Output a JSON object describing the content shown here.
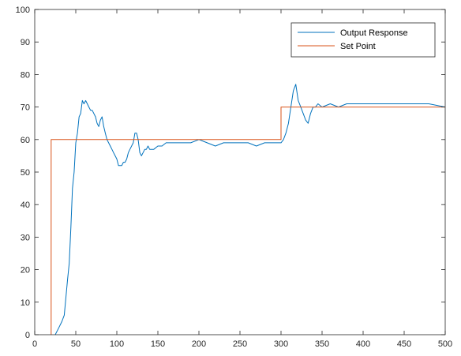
{
  "chart_data": {
    "type": "line",
    "xlim": [
      0,
      500
    ],
    "ylim": [
      0,
      100
    ],
    "xticks": [
      0,
      50,
      100,
      150,
      200,
      250,
      300,
      350,
      400,
      450,
      500
    ],
    "yticks": [
      0,
      10,
      20,
      30,
      40,
      50,
      60,
      70,
      80,
      90,
      100
    ],
    "grid": false,
    "legend_position": "top-right",
    "series": [
      {
        "name": "Output Response",
        "color": "#0072BD",
        "x": [
          25,
          29,
          33,
          36,
          40,
          42,
          44,
          46,
          48,
          50,
          52,
          54,
          56,
          58,
          60,
          62,
          64,
          66,
          68,
          70,
          72,
          74,
          76,
          78,
          80,
          82,
          84,
          86,
          88,
          90,
          92,
          94,
          96,
          98,
          100,
          102,
          104,
          106,
          108,
          110,
          112,
          114,
          116,
          118,
          120,
          122,
          124,
          126,
          128,
          130,
          132,
          134,
          136,
          138,
          140,
          145,
          150,
          155,
          160,
          170,
          180,
          190,
          200,
          210,
          220,
          230,
          240,
          250,
          260,
          270,
          280,
          290,
          295,
          300,
          303,
          306,
          309,
          312,
          315,
          318,
          321,
          324,
          327,
          330,
          333,
          336,
          339,
          342,
          345,
          350,
          360,
          370,
          380,
          390,
          400,
          420,
          440,
          460,
          480,
          500
        ],
        "y": [
          0,
          2,
          4,
          6,
          17,
          22,
          33,
          45,
          50,
          59,
          62,
          67,
          68,
          72,
          71,
          72,
          71,
          70,
          69,
          69,
          68,
          67,
          65,
          64,
          66,
          67,
          64,
          62,
          60,
          59,
          58,
          57,
          56,
          55,
          54,
          52,
          52,
          52,
          53,
          53,
          54,
          56,
          57,
          58,
          59,
          62,
          62,
          60,
          56,
          55,
          56,
          57,
          57,
          58,
          57,
          57,
          58,
          58,
          59,
          59,
          59,
          59,
          60,
          59,
          58,
          59,
          59,
          59,
          59,
          58,
          59,
          59,
          59,
          59,
          60,
          62,
          65,
          70,
          75,
          77,
          72,
          70,
          68,
          66,
          65,
          68,
          70,
          70,
          71,
          70,
          71,
          70,
          71,
          71,
          71,
          71,
          71,
          71,
          71,
          70
        ]
      },
      {
        "name": "Set Point",
        "color": "#D95319",
        "x": [
          20,
          20,
          300,
          300,
          500
        ],
        "y": [
          0,
          60,
          60,
          70,
          70
        ]
      }
    ]
  }
}
